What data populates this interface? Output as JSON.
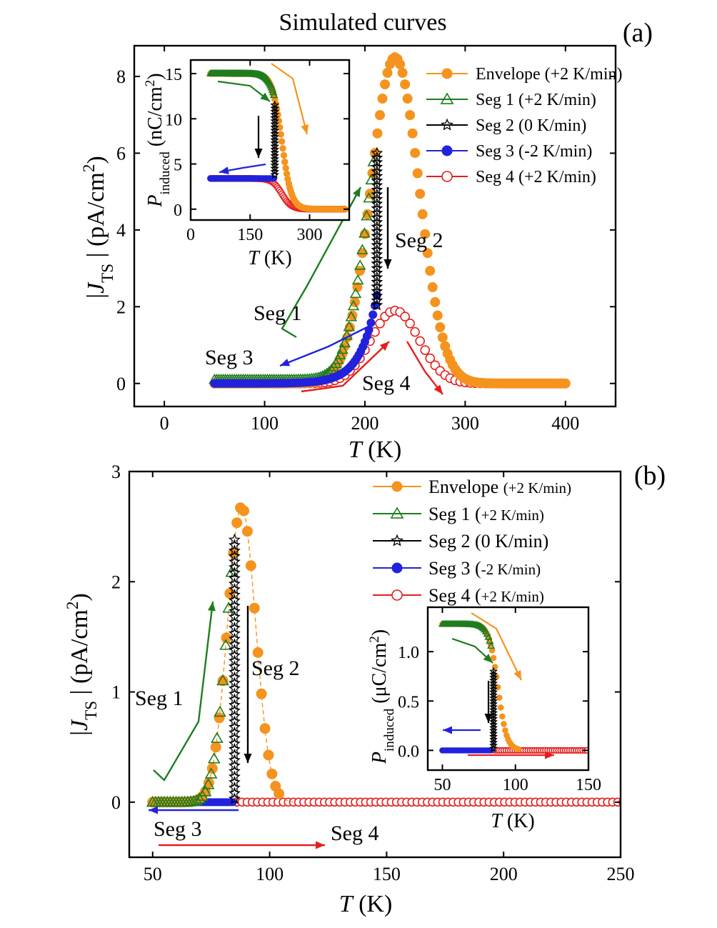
{
  "chart_data": [
    {
      "panel": "(a)",
      "type": "scatter",
      "title": "Simulated curves",
      "xlabel": {
        "italic": "T",
        "rest": " (K)"
      },
      "ylabel": {
        "italic": "J",
        "sub": "TS",
        "rest": " (pA/cm",
        "sup": "2",
        "close": ")"
      },
      "xlim": [
        -30,
        450
      ],
      "ylim": [
        -0.6,
        8.8
      ],
      "xticks": [
        0,
        100,
        200,
        300,
        400
      ],
      "yticks": [
        0,
        2,
        4,
        6,
        8
      ],
      "legend": [
        {
          "label": "Envelope (+2 K/min)",
          "color": "#f5931f",
          "marker": "filled-circle"
        },
        {
          "label": "Seg 1 (+2 K/min)",
          "color": "#1e7d1e",
          "marker": "open-triangle"
        },
        {
          "label": "Seg 2 (0 K/min)",
          "color": "#000000",
          "marker": "open-star"
        },
        {
          "label": "Seg 3 (-2 K/min)",
          "color": "#2222dd",
          "marker": "filled-circle"
        },
        {
          "label": "Seg 4 (+2 K/min)",
          "color": "#e61e1e",
          "marker": "open-circle"
        }
      ],
      "series": [
        {
          "name": "Envelope (+2 K/min)",
          "shape": "gaussian",
          "x_range": [
            50,
            400
          ],
          "peak_x": 230,
          "peak_y": 8.5,
          "sigma": 24,
          "floor": 0
        },
        {
          "name": "Seg 1 (+2 K/min)",
          "shape": "gaussian-truncated",
          "x_range": [
            50,
            210
          ],
          "peak_x": 230,
          "peak_y": 8.5,
          "sigma": 24,
          "floor": 0.1,
          "end_y": 6.0
        },
        {
          "name": "Seg 2 (0 K/min)",
          "shape": "vertical-decay",
          "x": 212,
          "y_range": [
            2.0,
            6.0
          ]
        },
        {
          "name": "Seg 3 (-2 K/min)",
          "shape": "decay",
          "x_range": [
            50,
            212
          ],
          "start_y": 2.3,
          "end_y": 0.0
        },
        {
          "name": "Seg 4 (+2 K/min)",
          "shape": "gaussian",
          "x_range": [
            50,
            400
          ],
          "peak_x": 230,
          "peak_y": 1.9,
          "sigma": 24,
          "floor": 0
        }
      ],
      "annotations": [
        {
          "text": "Seg 1",
          "color": "#1e7d1e"
        },
        {
          "text": "Seg 2",
          "color": "#000000"
        },
        {
          "text": "Seg 3",
          "color": "#2222dd"
        },
        {
          "text": "Seg 4",
          "color": "#e61e1e"
        }
      ],
      "inset": {
        "xlabel": {
          "italic": "T",
          "rest": " (K)"
        },
        "ylabel": {
          "italic": "P",
          "sub": "induced",
          "rest": " (nC/cm",
          "sup": "2",
          "close": ")"
        },
        "xlim": [
          0,
          400
        ],
        "ylim": [
          -1.2,
          16.5
        ],
        "xticks": [
          0,
          150,
          300
        ],
        "yticks": [
          0,
          5,
          10,
          15
        ],
        "series": [
          {
            "name": "Envelope",
            "shape": "sigmoid",
            "start_y": 15,
            "mid_x": 230,
            "width": 12,
            "x_range": [
              50,
              390
            ]
          },
          {
            "name": "Seg 1",
            "shape": "sigmoid-truncated",
            "start_y": 15,
            "mid_x": 230,
            "width": 12,
            "x_range": [
              50,
              210
            ]
          },
          {
            "name": "Seg 2",
            "shape": "vertical",
            "x": 212,
            "y_range": [
              3.5,
              11.5
            ]
          },
          {
            "name": "Seg 3",
            "shape": "flat",
            "y": 3.4,
            "x_range": [
              50,
              212
            ]
          },
          {
            "name": "Seg 4",
            "shape": "sigmoid",
            "start_y": 3.4,
            "mid_x": 230,
            "width": 12,
            "x_range": [
              50,
              390
            ]
          }
        ]
      }
    },
    {
      "panel": "(b)",
      "type": "scatter",
      "xlabel": {
        "italic": "T",
        "rest": " (K)"
      },
      "ylabel": {
        "italic": "J",
        "sub": "TS",
        "rest": " (pA/cm",
        "sup": "2",
        "close": ")"
      },
      "xlim": [
        40,
        250
      ],
      "ylim": [
        -0.5,
        3.0
      ],
      "xticks": [
        50,
        100,
        150,
        200,
        250
      ],
      "yticks": [
        0,
        1,
        2,
        3
      ],
      "legend": [
        {
          "label": "Envelope ",
          "small": "(+2 K/min)",
          "color": "#f5931f",
          "marker": "filled-circle"
        },
        {
          "label": "Seg 1 (",
          "small": "+2 K/min)",
          "color": "#1e7d1e",
          "marker": "open-triangle"
        },
        {
          "label": "Seg 2 (0 K/min)",
          "small": "",
          "color": "#000000",
          "marker": "open-star"
        },
        {
          "label": "Seg 3 (",
          "small": "-2 K/min)",
          "color": "#2222dd",
          "marker": "filled-circle"
        },
        {
          "label": "Seg 4 (",
          "small": "+2 K/min)",
          "color": "#e61e1e",
          "marker": "open-circle"
        }
      ],
      "series": [
        {
          "name": "Envelope (+2 K/min)",
          "shape": "gaussian",
          "x_range": [
            50,
            250
          ],
          "peak_x": 88,
          "peak_y": 2.68,
          "sigma": 6,
          "floor": 0
        },
        {
          "name": "Seg 1 (+2 K/min)",
          "shape": "gaussian-truncated",
          "x_range": [
            50,
            84
          ],
          "peak_x": 88,
          "peak_y": 2.68,
          "sigma": 6,
          "floor": 0,
          "end_y": 2.38
        },
        {
          "name": "Seg 2 (0 K/min)",
          "shape": "vertical-decay",
          "x": 85,
          "y_range": [
            0.0,
            2.38
          ]
        },
        {
          "name": "Seg 3 (-2 K/min)",
          "shape": "flat",
          "x_range": [
            50,
            85
          ],
          "y": 0.0
        },
        {
          "name": "Seg 4 (+2 K/min)",
          "shape": "flat",
          "x_range": [
            50,
            250
          ],
          "y": 0.0
        }
      ],
      "annotations": [
        {
          "text": "Seg 1",
          "color": "#1e7d1e"
        },
        {
          "text": "Seg 2",
          "color": "#000000"
        },
        {
          "text": "Seg 3",
          "color": "#2222dd"
        },
        {
          "text": "Seg 4",
          "color": "#e61e1e"
        }
      ],
      "inset": {
        "xlabel": {
          "italic": "T",
          "rest": " (K)"
        },
        "ylabel": {
          "italic": "P",
          "sub": "induced",
          "rest": " (μC/cm",
          "sup": "2",
          "close": ")"
        },
        "xlim": [
          40,
          150
        ],
        "ylim": [
          -0.2,
          1.45
        ],
        "xticks": [
          50,
          100,
          150
        ],
        "yticks": [
          0.0,
          0.5,
          1.0
        ],
        "tick_labels": [
          "0.0",
          "0.5",
          "1.0"
        ],
        "series": [
          {
            "name": "Envelope",
            "shape": "sigmoid",
            "start_y": 1.28,
            "mid_x": 88,
            "width": 3,
            "x_range": [
              50,
              150
            ]
          },
          {
            "name": "Seg 1",
            "shape": "sigmoid-truncated",
            "start_y": 1.28,
            "mid_x": 88,
            "width": 3,
            "x_range": [
              50,
              84
            ]
          },
          {
            "name": "Seg 2",
            "shape": "vertical",
            "x": 85,
            "y_range": [
              0.0,
              0.8
            ]
          },
          {
            "name": "Seg 3",
            "shape": "flat",
            "y": 0.0,
            "x_range": [
              50,
              85
            ]
          },
          {
            "name": "Seg 4",
            "shape": "flat",
            "y": 0.0,
            "x_range": [
              50,
              150
            ]
          }
        ]
      }
    }
  ],
  "labels": {
    "panel_a": "(a)",
    "panel_b": "(b)",
    "title": "Simulated curves"
  }
}
